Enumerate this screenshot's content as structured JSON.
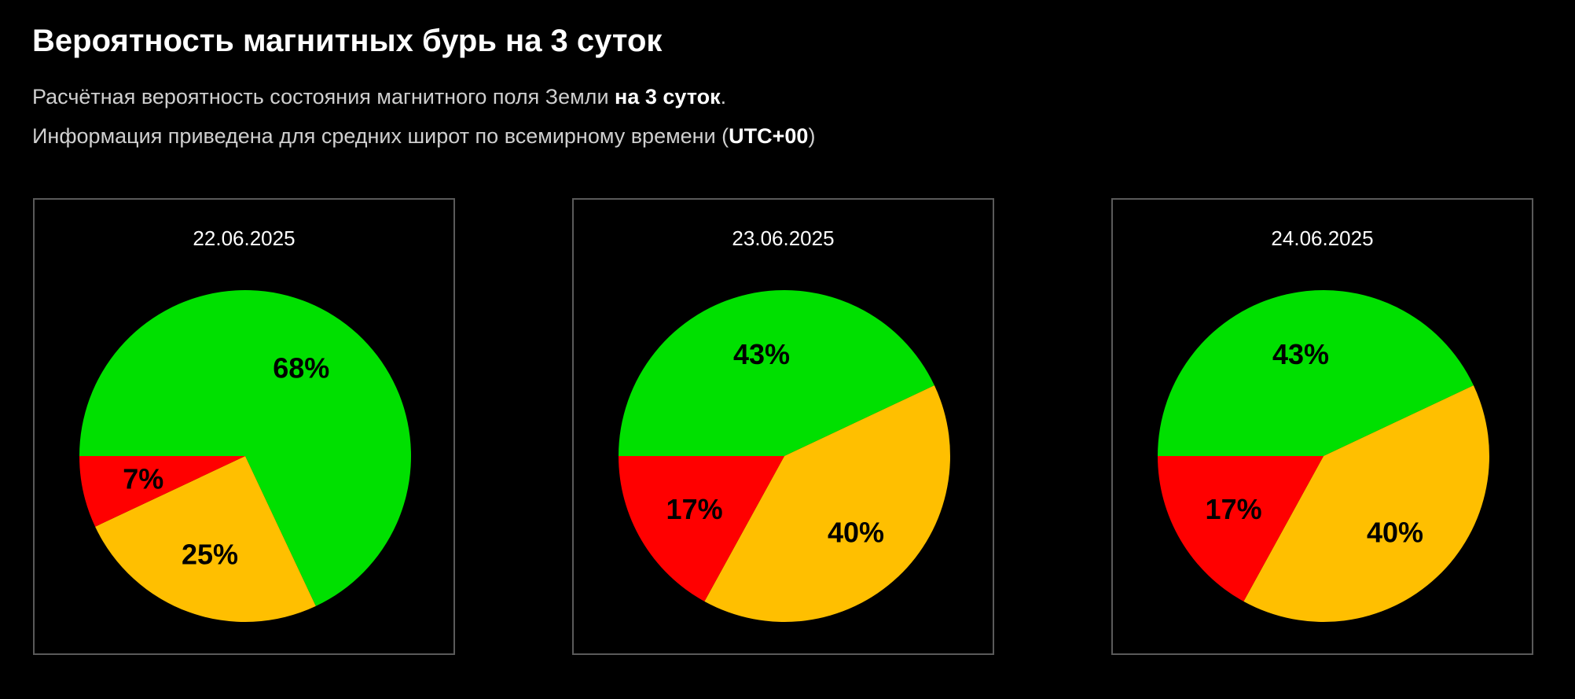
{
  "header": {
    "title": "Вероятность магнитных бурь на 3 суток",
    "line1_text": "Расчётная вероятность состояния магнитного поля Земли ",
    "line1_bold": "на 3 суток",
    "line1_end": ".",
    "line2_text": "Информация приведена для средних широт по всемирному времени (",
    "line2_bold": "UTC+00",
    "line2_end": ")"
  },
  "colors": {
    "green": "#00e000",
    "orange": "#ffbf00",
    "red": "#ff0000"
  },
  "chart_data": [
    {
      "type": "pie",
      "title": "22.06.2025",
      "slices": [
        {
          "color": "green",
          "value": 68,
          "label": "68%"
        },
        {
          "color": "orange",
          "value": 25,
          "label": "25%"
        },
        {
          "color": "red",
          "value": 7,
          "label": "7%"
        }
      ]
    },
    {
      "type": "pie",
      "title": "23.06.2025",
      "slices": [
        {
          "color": "green",
          "value": 43,
          "label": "43%"
        },
        {
          "color": "orange",
          "value": 40,
          "label": "40%"
        },
        {
          "color": "red",
          "value": 17,
          "label": "17%"
        }
      ]
    },
    {
      "type": "pie",
      "title": "24.06.2025",
      "slices": [
        {
          "color": "green",
          "value": 43,
          "label": "43%"
        },
        {
          "color": "orange",
          "value": 40,
          "label": "40%"
        },
        {
          "color": "red",
          "value": 17,
          "label": "17%"
        }
      ]
    }
  ]
}
